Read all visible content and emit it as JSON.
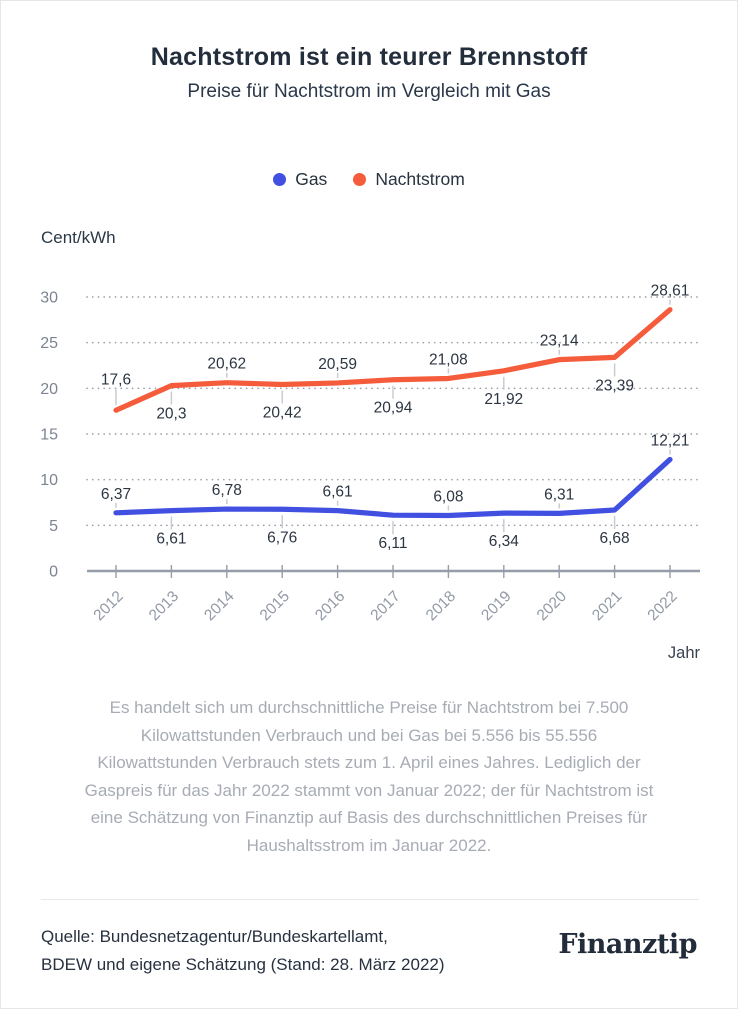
{
  "header": {
    "title": "Nachtstrom ist ein teurer Brennstoff",
    "subtitle": "Preise für Nachtstrom im Vergleich mit Gas"
  },
  "legend": [
    {
      "label": "Gas",
      "color": "#4150E0"
    },
    {
      "label": "Nachtstrom",
      "color": "#F55C3B"
    }
  ],
  "chart_data": {
    "type": "line",
    "unit_label": "Cent/kWh",
    "xlabel": "Jahr",
    "categories": [
      "2012",
      "2013",
      "2014",
      "2015",
      "2016",
      "2017",
      "2018",
      "2019",
      "2020",
      "2021",
      "2022"
    ],
    "series": [
      {
        "name": "Gas",
        "color": "#4150E0",
        "values": [
          6.37,
          6.61,
          6.78,
          6.76,
          6.61,
          6.11,
          6.08,
          6.34,
          6.31,
          6.68,
          12.21
        ]
      },
      {
        "name": "Nachtstrom",
        "color": "#F55C3B",
        "values": [
          17.6,
          20.3,
          20.62,
          20.42,
          20.59,
          20.94,
          21.08,
          21.92,
          23.14,
          23.39,
          28.61
        ]
      }
    ],
    "y_ticks": [
      0,
      5,
      10,
      15,
      20,
      25,
      30
    ],
    "ylim": [
      0,
      30
    ],
    "grid": "dotted-horizontal",
    "legend_position": "top-center",
    "decimal_separator": ","
  },
  "footnote": {
    "lines": [
      "Es handelt sich um durchschnittliche Preise für Nachtstrom bei 7.500",
      "Kilowattstunden Verbrauch und bei Gas bei 5.556 bis 55.556",
      "Kilowattstunden Verbrauch stets zum 1. April eines Jahres. Lediglich der",
      "Gaspreis für das Jahr 2022 stammt von Januar 2022; der für Nachtstrom ist",
      "eine Schätzung von Finanztip auf Basis des durchschnittlichen Preises für",
      "Haushaltsstrom im Januar 2022."
    ]
  },
  "source": {
    "lines": [
      "Quelle: Bundesnetzagentur/Bundeskartellamt,",
      "BDEW und eigene Schätzung (Stand: 28. März 2022)"
    ]
  },
  "logo": {
    "text": "Finanztip"
  },
  "colors": {
    "title_text": "#232e3d",
    "axis_text": "#7c8492",
    "x_label_text": "#9199a4",
    "data_label_text": "#2c3542",
    "footnote_text": "#a7acb4",
    "axis_line": "#959da9",
    "gridline": "#9aa0a8",
    "leader_line": "#c8ccd2",
    "background": "#ffffff"
  }
}
